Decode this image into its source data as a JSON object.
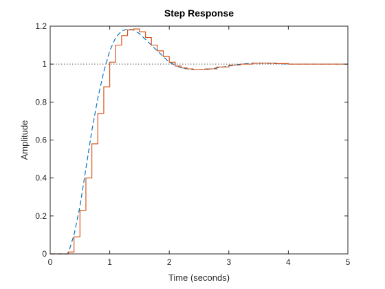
{
  "chart_data": {
    "type": "line",
    "title": "Step Response",
    "xlabel": "Time (seconds)",
    "ylabel": "Amplitude",
    "xlim": [
      0,
      5
    ],
    "ylim": [
      0,
      1.2
    ],
    "x_ticks": [
      0,
      1,
      2,
      3,
      4,
      5
    ],
    "x_tick_labels": [
      "0",
      "1",
      "2",
      "3",
      "4",
      "5"
    ],
    "y_ticks": [
      0,
      0.2,
      0.4,
      0.6,
      0.8,
      1,
      1.2
    ],
    "y_tick_labels": [
      "0",
      "0.2",
      "0.4",
      "0.6",
      "0.8",
      "1",
      "1.2"
    ],
    "grid": false,
    "reference_line": {
      "y": 1,
      "style": "dotted",
      "color": "#555555"
    },
    "series": [
      {
        "style": "dashed",
        "color": "#0072BD",
        "x": [
          0,
          0.3,
          0.4,
          0.5,
          0.6,
          0.7,
          0.8,
          0.9,
          1.0,
          1.1,
          1.2,
          1.3,
          1.4,
          1.5,
          1.6,
          1.7,
          1.8,
          1.9,
          2.0,
          2.2,
          2.4,
          2.6,
          2.8,
          3.0,
          3.2,
          3.4,
          3.6,
          3.8,
          4.0,
          4.5,
          5.0
        ],
        "y": [
          0,
          0.0,
          0.1,
          0.25,
          0.45,
          0.65,
          0.82,
          0.96,
          1.07,
          1.14,
          1.175,
          1.185,
          1.18,
          1.16,
          1.13,
          1.1,
          1.07,
          1.04,
          1.01,
          0.98,
          0.97,
          0.97,
          0.98,
          0.99,
          1.0,
          1.005,
          1.005,
          1.003,
          1.0,
          1.0,
          1.0
        ]
      },
      {
        "style": "stairs",
        "color": "#D95319",
        "x": [
          0,
          0.2,
          0.3,
          0.4,
          0.5,
          0.6,
          0.7,
          0.8,
          0.9,
          1.0,
          1.1,
          1.2,
          1.3,
          1.4,
          1.5,
          1.6,
          1.7,
          1.8,
          1.9,
          2.0,
          2.1,
          2.2,
          2.3,
          2.4,
          2.6,
          2.8,
          3.0,
          3.2,
          3.4,
          3.6,
          3.8,
          4.0,
          4.2,
          4.4,
          5.0
        ],
        "y": [
          0,
          0,
          0.01,
          0.09,
          0.23,
          0.4,
          0.58,
          0.74,
          0.88,
          1.01,
          1.1,
          1.15,
          1.18,
          1.185,
          1.17,
          1.14,
          1.1,
          1.07,
          1.04,
          1.01,
          0.99,
          0.98,
          0.975,
          0.97,
          0.975,
          0.985,
          0.995,
          1.0,
          1.005,
          1.005,
          1.003,
          1.0,
          1.0,
          1.0,
          1.0
        ]
      }
    ]
  }
}
